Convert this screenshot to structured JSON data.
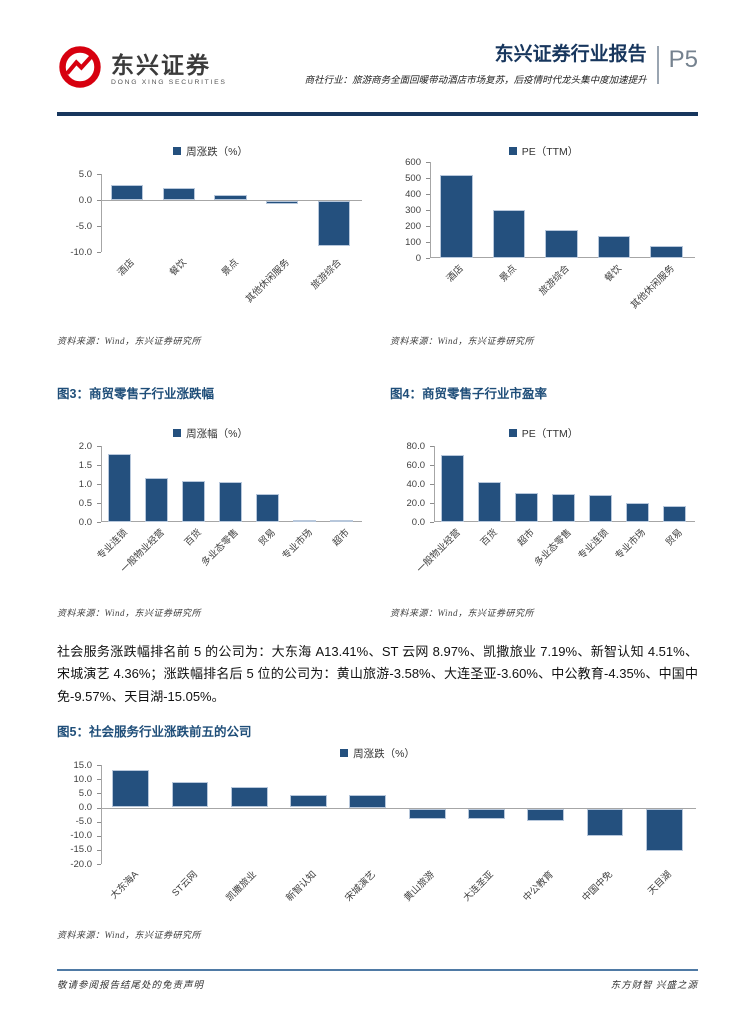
{
  "header": {
    "logo_cn": "东兴证券",
    "logo_en": "DONG XING SECURITIES",
    "report_title": "东兴证券行业报告",
    "page_number": "P5",
    "subtitle": "商社行业：旅游商务全面回暖带动酒店市场复苏，后疫情时代龙头集中度加速提升"
  },
  "source_note": "资料来源：Wind，东兴证券研究所",
  "figures": {
    "fig3_title": "图3：商贸零售子行业涨跌幅",
    "fig4_title": "图4：商贸零售子行业市盈率",
    "fig5_title": "图5：社会服务行业涨跌前五的公司"
  },
  "paragraph": "社会服务涨跌幅排名前 5 的公司为：大东海 A13.41%、ST 云网 8.97%、凯撒旅业 7.19%、新智认知 4.51%、宋城演艺 4.36%；涨跌幅排名后 5 位的公司为：黄山旅游-3.58%、大连圣亚-3.60%、中公教育-4.35%、中国中免-9.57%、天目湖-15.05%。",
  "footer": {
    "left": "敬请参阅报告结尾处的免责声明",
    "right": "东方财智 兴盛之源"
  },
  "colors": {
    "bar": "#24507E",
    "navy": "#17365D",
    "logo_red": "#D7000F"
  },
  "chart_data": [
    {
      "type": "bar",
      "legend": "周涨跌（%）",
      "categories": [
        "酒店",
        "餐饮",
        "景点",
        "其他休闲服务",
        "旅游综合"
      ],
      "values": [
        2.8,
        2.3,
        0.9,
        -0.5,
        -8.7
      ],
      "ymin": -10,
      "ymax": 5,
      "ticks": [
        "5.0",
        "0.0",
        "-5.0",
        "-10.0"
      ],
      "grid": false,
      "legend_position": "top"
    },
    {
      "type": "bar",
      "legend": "PE（TTM）",
      "categories": [
        "酒店",
        "景点",
        "旅游综合",
        "餐饮",
        "其他休闲服务"
      ],
      "values": [
        520,
        300,
        172,
        140,
        73
      ],
      "ymin": 0,
      "ymax": 600,
      "ticks": [
        "600",
        "500",
        "400",
        "300",
        "200",
        "100",
        "0"
      ],
      "grid": false,
      "legend_position": "top"
    },
    {
      "type": "bar",
      "legend": "周涨幅（%）",
      "categories": [
        "专业连锁",
        "一般物业经营",
        "百货",
        "多业态零售",
        "贸易",
        "专业市场",
        "超市"
      ],
      "values": [
        1.78,
        1.15,
        1.07,
        1.04,
        0.74,
        0.05,
        0.05
      ],
      "ymin": 0,
      "ymax": 2,
      "ticks": [
        "2.0",
        "1.5",
        "1.0",
        "0.5",
        "0.0"
      ],
      "grid": false,
      "legend_position": "top"
    },
    {
      "type": "bar",
      "legend": "PE（TTM）",
      "categories": [
        "一般物业经营",
        "百货",
        "超市",
        "多业态零售",
        "专业连锁",
        "专业市场",
        "贸易"
      ],
      "values": [
        71,
        42,
        31,
        30,
        28,
        20,
        17
      ],
      "ymin": 0,
      "ymax": 80,
      "ticks": [
        "80.0",
        "60.0",
        "40.0",
        "20.0",
        "0.0"
      ],
      "grid": false,
      "legend_position": "top"
    },
    {
      "type": "bar",
      "legend": "周涨跌（%）",
      "categories": [
        "大东海A",
        "ST云网",
        "凯撒旅业",
        "新智认知",
        "宋城演艺",
        "黄山旅游",
        "大连圣亚",
        "中公教育",
        "中国中免",
        "天目湖"
      ],
      "values": [
        13.41,
        8.97,
        7.19,
        4.51,
        4.36,
        -3.58,
        -3.6,
        -4.35,
        -9.57,
        -15.05
      ],
      "ymin": -20,
      "ymax": 15,
      "ticks": [
        "15.0",
        "10.0",
        "5.0",
        "0.0",
        "-5.0",
        "-10.0",
        "-15.0",
        "-20.0"
      ],
      "grid": false,
      "legend_position": "top"
    }
  ]
}
